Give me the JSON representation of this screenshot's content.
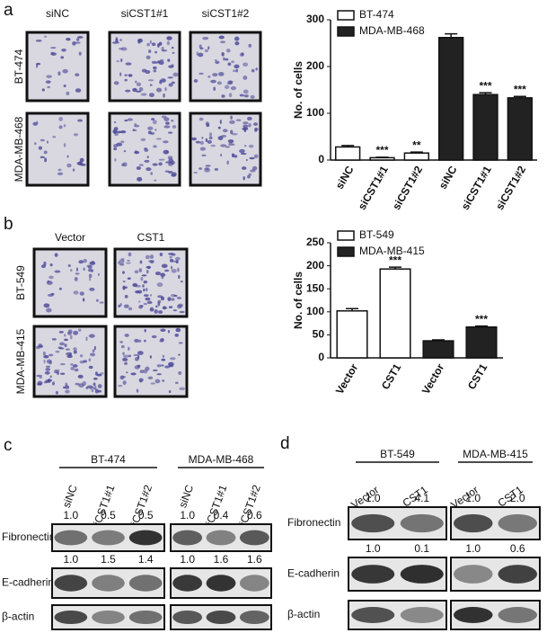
{
  "panels": {
    "a": "a",
    "b": "b",
    "c": "c",
    "d": "d"
  },
  "panel_a_images": {
    "columns": [
      "siNC",
      "siCST1#1",
      "siCST1#2"
    ],
    "rows": [
      "BT-474",
      "MDA-MB-468"
    ]
  },
  "panel_b_images": {
    "columns": [
      "Vector",
      "CST1"
    ],
    "rows": [
      "BT-549",
      "MDA-MB-415"
    ]
  },
  "chart_data": [
    {
      "type": "bar",
      "y_label": "No. of cells",
      "legend": "top-left",
      "categories": [
        "siNC",
        "siCST1#1",
        "siCST1#2",
        "siNC",
        "siCST1#1",
        "siCST1#2"
      ],
      "series": [
        {
          "name": "BT-474",
          "color": "#ffffff",
          "values": [
            28,
            5,
            15,
            null,
            null,
            null
          ],
          "errors": [
            3,
            1,
            2,
            null,
            null,
            null
          ],
          "significance": [
            null,
            "***",
            "**",
            null,
            null,
            null
          ]
        },
        {
          "name": "MDA-MB-468",
          "color": "#222222",
          "values": [
            null,
            null,
            null,
            262,
            140,
            133
          ],
          "errors": [
            null,
            null,
            null,
            8,
            4,
            3
          ],
          "significance": [
            null,
            null,
            null,
            null,
            "***",
            "***"
          ]
        }
      ],
      "ylim": [
        0,
        300
      ],
      "yticks": [
        0,
        100,
        200,
        300
      ]
    },
    {
      "type": "bar",
      "y_label": "No. of cells",
      "legend": "top-left",
      "categories": [
        "Vector",
        "CST1",
        "Vector",
        "CST1"
      ],
      "series": [
        {
          "name": "BT-549",
          "color": "#ffffff",
          "values": [
            102,
            193,
            null,
            null
          ],
          "errors": [
            5,
            4,
            null,
            null
          ],
          "significance": [
            null,
            "***",
            null,
            null
          ]
        },
        {
          "name": "MDA-MB-415",
          "color": "#222222",
          "values": [
            null,
            null,
            37,
            67
          ],
          "errors": [
            null,
            null,
            2,
            2
          ],
          "significance": [
            null,
            null,
            null,
            "***"
          ]
        }
      ],
      "ylim": [
        0,
        250
      ],
      "yticks": [
        0,
        50,
        100,
        150,
        200,
        250
      ]
    }
  ],
  "panel_c_blot": {
    "groups": [
      {
        "name": "BT-474",
        "lanes": [
          "siNC",
          "siCST1#1",
          "siCST1#2"
        ]
      },
      {
        "name": "MDA-MB-468",
        "lanes": [
          "siNC",
          "siCST1#1",
          "siCST1#2"
        ]
      }
    ],
    "blots": [
      {
        "name": "Fibronectin",
        "ratios": [
          [
            "1.0",
            "0.5",
            "0.5"
          ],
          [
            "1.0",
            "0.4",
            "0.6"
          ]
        ]
      },
      {
        "name": "E-cadherin",
        "ratios": [
          [
            "1.0",
            "1.5",
            "1.4"
          ],
          [
            "1.0",
            "1.6",
            "1.6"
          ]
        ]
      },
      {
        "name": "β-actin"
      }
    ]
  },
  "panel_d_blot": {
    "groups": [
      {
        "name": "BT-549",
        "lanes": [
          "Vector",
          "CST1"
        ]
      },
      {
        "name": "MDA-MB-415",
        "lanes": [
          "Vector",
          "CST1"
        ]
      }
    ],
    "blots": [
      {
        "name": "Fibronectin",
        "ratios": [
          [
            "1.0",
            "4.1"
          ],
          [
            "1.0",
            "2.0"
          ]
        ]
      },
      {
        "name": "E-cadherin",
        "ratios": [
          [
            "1.0",
            "0.1"
          ],
          [
            "1.0",
            "0.6"
          ]
        ]
      },
      {
        "name": "β-actin"
      }
    ]
  }
}
